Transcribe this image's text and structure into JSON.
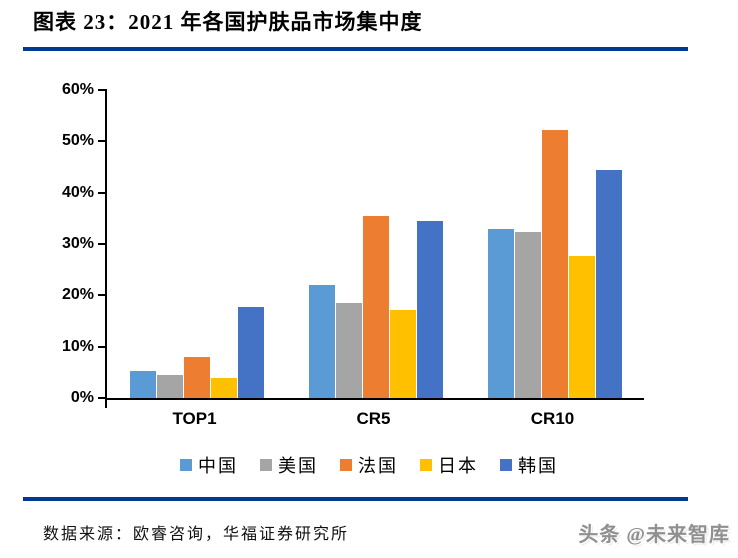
{
  "header": {
    "divider_color": "#003896"
  },
  "chart_data": {
    "type": "bar",
    "title": "图表 23：2021 年各国护肤品市场集中度",
    "categories": [
      "TOP1",
      "CR5",
      "CR10"
    ],
    "series": [
      {
        "name": "中国",
        "color": "#5B9BD5",
        "values": [
          5.3,
          22.0,
          33.0
        ]
      },
      {
        "name": "美国",
        "color": "#A5A5A5",
        "values": [
          4.5,
          18.5,
          32.4
        ]
      },
      {
        "name": "法国",
        "color": "#ED7D31",
        "values": [
          8.0,
          35.5,
          52.2
        ]
      },
      {
        "name": "日本",
        "color": "#FFC000",
        "values": [
          3.9,
          17.2,
          27.6
        ]
      },
      {
        "name": "韩国",
        "color": "#4472C4",
        "values": [
          17.8,
          34.4,
          44.5
        ]
      }
    ],
    "ylim": [
      0,
      60
    ],
    "ytick_step": 10,
    "ytick_labels": [
      "0%",
      "10%",
      "20%",
      "30%",
      "40%",
      "50%",
      "60%"
    ],
    "grid": false,
    "legend_position": "bottom",
    "xlabel": "",
    "ylabel": ""
  },
  "footer": {
    "source": "数据来源：欧睿咨询，华福证券研究所",
    "watermark": "头条 @未来智库"
  }
}
